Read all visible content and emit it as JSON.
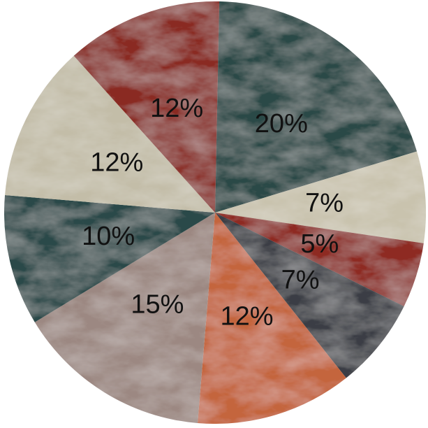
{
  "chart_data": {
    "type": "pie",
    "values": [
      20,
      7,
      5,
      7,
      12,
      15,
      10,
      12,
      12
    ],
    "value_labels": [
      "20%",
      "7%",
      "5%",
      "7%",
      "12%",
      "15%",
      "10%",
      "12%",
      "12%"
    ],
    "colors": [
      "#2c4a47",
      "#c9c3ae",
      "#8e2c22",
      "#3b3c44",
      "#c4653d",
      "#9c8882",
      "#2b4948",
      "#c3bda8",
      "#8a2b23"
    ]
  }
}
